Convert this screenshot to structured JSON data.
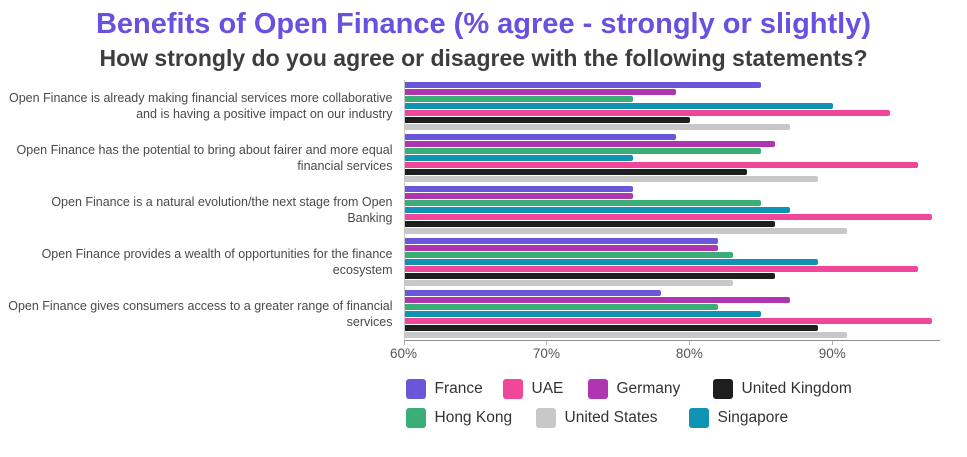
{
  "title": "Benefits of Open Finance (% agree - strongly or slightly)",
  "subtitle": "How strongly do you agree or disagree with the following statements?",
  "title_color": "#6A50E0",
  "chart_data": {
    "type": "bar",
    "orientation": "horizontal",
    "title": "Benefits of Open Finance (% agree - strongly or slightly)",
    "subtitle": "How strongly do you agree or disagree with the following statements?",
    "xlabel": "",
    "ylabel": "",
    "xlim": [
      60,
      97.5
    ],
    "tick_values": [
      60,
      70,
      80,
      90
    ],
    "tick_labels": [
      "60%",
      "70%",
      "80%",
      "90%"
    ],
    "grid": false,
    "legend_position": "bottom",
    "categories": [
      "Open Finance is already making financial services more collaborative and is having a positive impact on our industry",
      "Open Finance has the potential to bring about fairer and more equal financial services",
      "Open Finance is a natural evolution/the next stage from Open Banking",
      "Open Finance provides a wealth of opportunities for the finance ecosystem",
      "Open Finance gives consumers access to a greater range of financial services"
    ],
    "series": [
      {
        "name": "France",
        "color": "#6A56D9",
        "values": [
          85,
          79,
          76,
          82,
          78
        ]
      },
      {
        "name": "Germany",
        "color": "#AF36B0",
        "values": [
          79,
          86,
          76,
          82,
          87
        ]
      },
      {
        "name": "Hong Kong",
        "color": "#3BAE77",
        "values": [
          76,
          85,
          85,
          83,
          82
        ]
      },
      {
        "name": "Singapore",
        "color": "#0F93B5",
        "values": [
          90,
          76,
          87,
          89,
          85
        ]
      },
      {
        "name": "UAE",
        "color": "#F0479B",
        "values": [
          94,
          96,
          97,
          96,
          97
        ]
      },
      {
        "name": "United Kingdom",
        "color": "#1E1E1E",
        "values": [
          80,
          84,
          86,
          86,
          89
        ]
      },
      {
        "name": "United States",
        "color": "#C8C8C8",
        "values": [
          87,
          89,
          91,
          83,
          91
        ]
      }
    ],
    "legend_rows": [
      [
        "France",
        "UAE",
        "Germany",
        "United Kingdom"
      ],
      [
        "Hong Kong",
        "United States",
        "Singapore"
      ]
    ]
  }
}
